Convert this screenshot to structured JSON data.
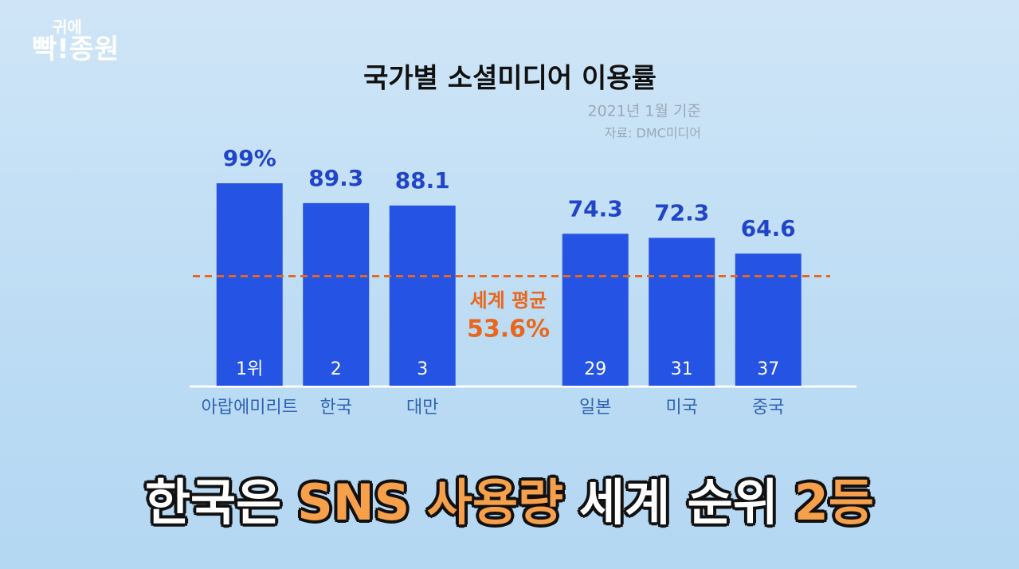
{
  "logo": {
    "lines": [
      "귀에",
      "빡!종원"
    ]
  },
  "chart_data": {
    "type": "bar",
    "title": "국가별 소셜미디어 이용률",
    "subtitle": "2021년 1월 기준",
    "source": "자료: DMC미디어",
    "categories": [
      "아랍에미리트",
      "한국",
      "대만",
      null,
      "일본",
      "미국",
      "중국"
    ],
    "values": [
      99,
      89.3,
      88.1,
      null,
      74.3,
      72.3,
      64.6
    ],
    "value_labels": [
      "99%",
      "89.3",
      "88.1",
      null,
      "74.3",
      "72.3",
      "64.6"
    ],
    "rank_labels": [
      "1위",
      "2",
      "3",
      null,
      "29",
      "31",
      "37"
    ],
    "color": "#2553e3",
    "ylim": [
      0,
      100
    ],
    "reference_line": {
      "value": 53.6,
      "label": "세계 평균",
      "value_label": "53.6%",
      "color": "#e8671c"
    }
  },
  "caption": [
    {
      "text": "한국은",
      "color": "#ffffff"
    },
    {
      "text": "SNS 사용량",
      "color": "#f7a04b"
    },
    {
      "text": "세계 순위",
      "color": "#ffffff"
    },
    {
      "text": "2등",
      "color": "#f7a04b"
    }
  ]
}
